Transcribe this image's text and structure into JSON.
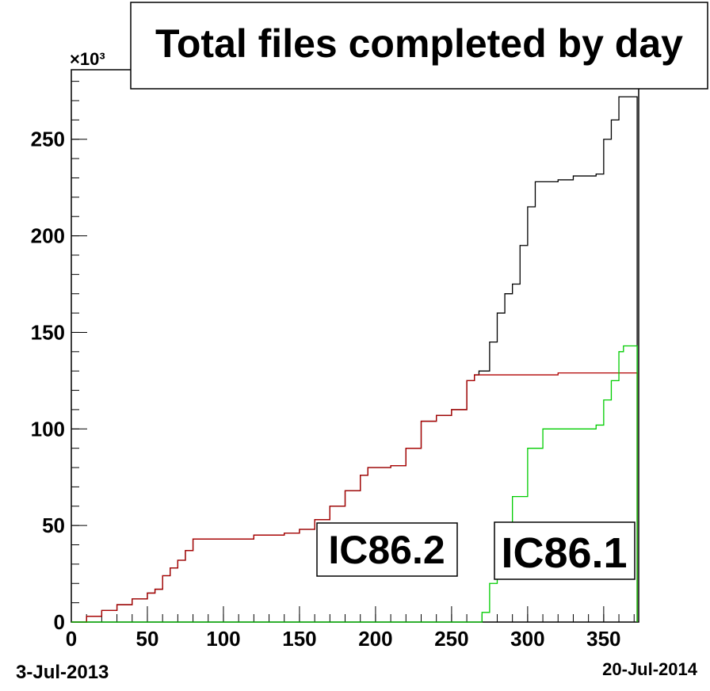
{
  "chart_data": {
    "type": "step",
    "title": "Total files completed by day",
    "y_multiplier": "×10³",
    "x_start_label": "3-Jul-2013",
    "x_end_label": "20-Jul-2014",
    "xlim": [
      0,
      373
    ],
    "ylim": [
      0,
      286
    ],
    "xticks": [
      0,
      50,
      100,
      150,
      200,
      250,
      300,
      350
    ],
    "yticks": [
      0,
      50,
      100,
      150,
      200,
      250
    ],
    "xminorticks": [
      0,
      10,
      20,
      30,
      40,
      50,
      60,
      70,
      80,
      90,
      100,
      110,
      120,
      130,
      140,
      150,
      160,
      170,
      180,
      190,
      200,
      210,
      220,
      230,
      240,
      250,
      260,
      270,
      280,
      290,
      300,
      310,
      320,
      330,
      340,
      350,
      360,
      370
    ],
    "yminorticks": [
      0,
      10,
      20,
      30,
      40,
      50,
      60,
      70,
      80,
      90,
      100,
      110,
      120,
      130,
      140,
      150,
      160,
      170,
      180,
      190,
      200,
      210,
      220,
      230,
      240,
      250,
      260,
      270,
      280
    ],
    "series": [
      {
        "color": "#000000",
        "x": [
          0,
          10,
          20,
          30,
          40,
          50,
          55,
          60,
          65,
          70,
          75,
          80,
          100,
          120,
          140,
          150,
          160,
          170,
          180,
          190,
          195,
          210,
          220,
          230,
          240,
          250,
          260,
          265,
          268,
          275,
          280,
          285,
          290,
          295,
          300,
          305,
          320,
          330,
          345,
          350,
          355,
          360,
          372
        ],
        "values": [
          0,
          3,
          6,
          9,
          12,
          15,
          17,
          24,
          28,
          32,
          37,
          43,
          43,
          45,
          46,
          48,
          53,
          60,
          68,
          76,
          80,
          81,
          90,
          104,
          107,
          110,
          125,
          128,
          130,
          145,
          160,
          170,
          175,
          195,
          215,
          228,
          229,
          231,
          232,
          250,
          260,
          272,
          0
        ]
      },
      {
        "name": "IC86.2",
        "color": "#b00000",
        "x": [
          0,
          10,
          20,
          30,
          40,
          50,
          55,
          60,
          65,
          70,
          75,
          80,
          100,
          120,
          140,
          150,
          160,
          170,
          180,
          190,
          195,
          210,
          220,
          230,
          240,
          250,
          260,
          265,
          300,
          320,
          372
        ],
        "values": [
          0,
          3,
          6,
          9,
          12,
          15,
          17,
          24,
          28,
          32,
          37,
          43,
          43,
          45,
          46,
          48,
          53,
          60,
          68,
          76,
          80,
          81,
          90,
          104,
          107,
          110,
          125,
          128,
          128,
          129,
          0
        ]
      },
      {
        "name": "IC86.1",
        "color": "#00cc00",
        "x": [
          0,
          268,
          270,
          275,
          280,
          290,
          300,
          310,
          345,
          350,
          355,
          360,
          363,
          372
        ],
        "values": [
          0,
          0,
          5,
          20,
          35,
          65,
          90,
          100,
          102,
          115,
          125,
          140,
          143,
          0
        ]
      }
    ]
  }
}
